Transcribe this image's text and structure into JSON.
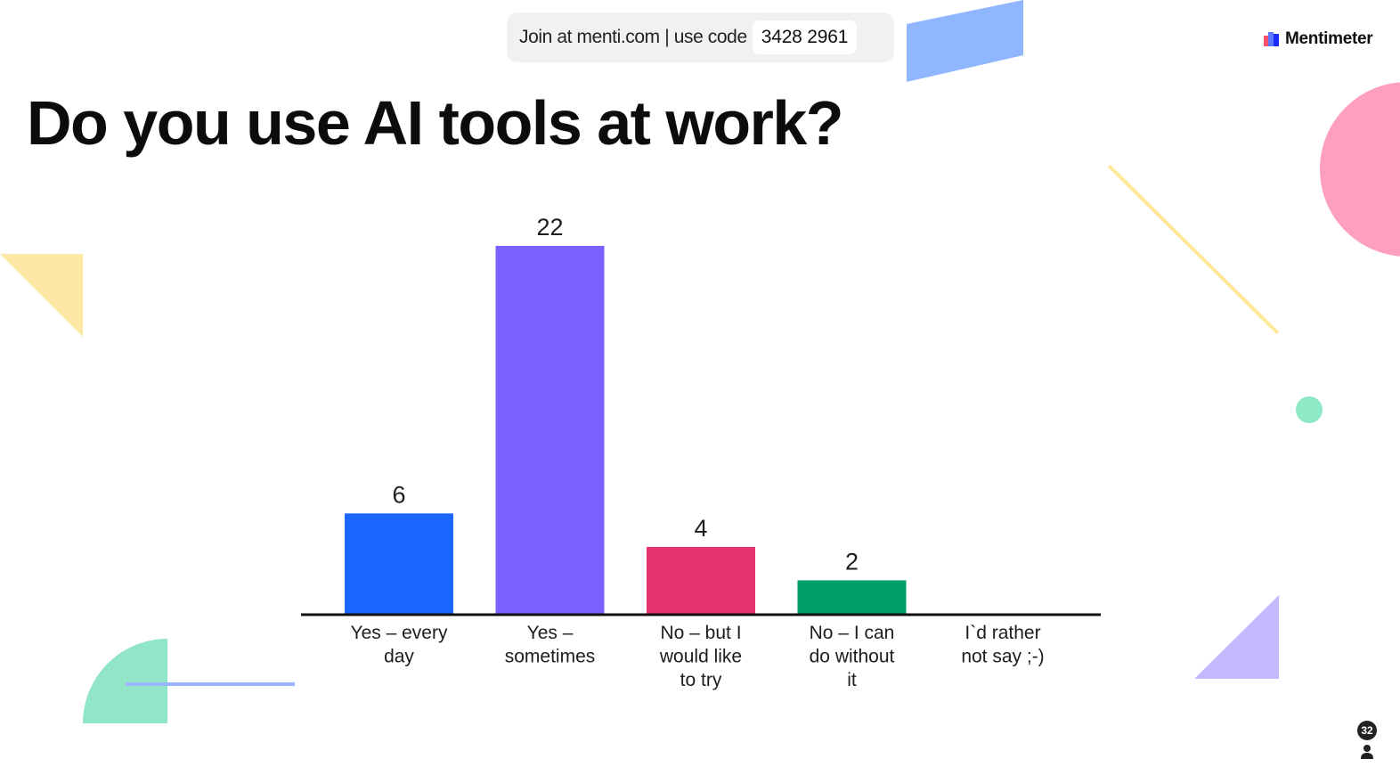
{
  "header": {
    "join_text": "Join at menti.com | use code",
    "code": "3428 2961"
  },
  "brand": {
    "name": "Mentimeter",
    "icon": "mentimeter-logo-icon"
  },
  "slide": {
    "title": "Do you use AI tools at work?"
  },
  "participants": {
    "count": "32",
    "icon": "person-icon"
  },
  "colors": {
    "accent_blue": "#1a66ff",
    "accent_purple": "#7b61ff",
    "accent_pink": "#e7336f",
    "accent_green": "#009e6b"
  },
  "chart_data": {
    "type": "bar",
    "categories": [
      [
        "Yes – every",
        "day"
      ],
      [
        "Yes –",
        "sometimes"
      ],
      [
        "No – but I",
        "would like",
        "to try"
      ],
      [
        "No – I can",
        "do without",
        "it"
      ],
      [
        "I`d rather",
        "not say ;-)"
      ]
    ],
    "values": [
      6,
      22,
      4,
      2,
      0
    ],
    "value_labels": [
      "6",
      "22",
      "4",
      "2",
      ""
    ],
    "colors": [
      "#1a66ff",
      "#7b61ff",
      "#e7336f",
      "#009e6b",
      "#f5a623"
    ],
    "ylim": [
      0,
      22
    ],
    "grid": false
  }
}
